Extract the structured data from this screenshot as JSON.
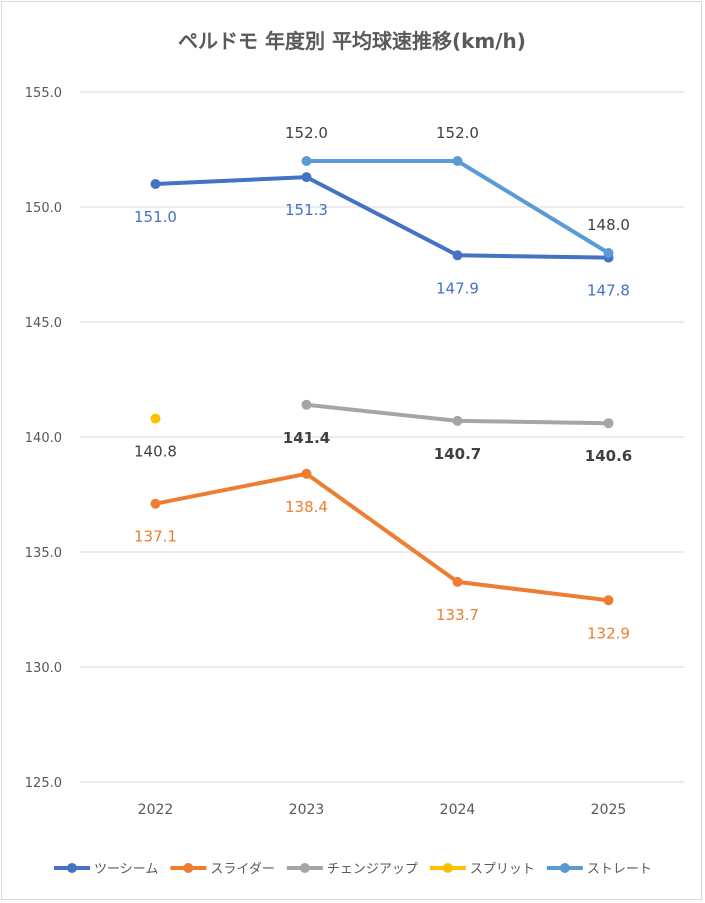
{
  "chart_data": {
    "type": "line",
    "title": "ペルドモ 年度別 平均球速推移(km/h)",
    "categories": [
      "2022",
      "2023",
      "2024",
      "2025"
    ],
    "ylim": [
      125,
      155
    ],
    "yticks": [
      "125.0",
      "130.0",
      "135.0",
      "140.0",
      "145.0",
      "150.0",
      "155.0"
    ],
    "series": [
      {
        "name": "ツーシーム",
        "color": "#4472c4",
        "values": [
          151.0,
          151.3,
          147.9,
          147.8
        ],
        "labels": [
          "151.0",
          "151.3",
          "147.9",
          "147.8"
        ],
        "label_pos": [
          "below",
          "below",
          "below",
          "below"
        ],
        "label_bold": false
      },
      {
        "name": "スライダー",
        "color": "#ed7d31",
        "values": [
          137.1,
          138.4,
          133.7,
          132.9
        ],
        "labels": [
          "137.1",
          "138.4",
          "133.7",
          "132.9"
        ],
        "label_pos": [
          "below",
          "below",
          "below",
          "below"
        ],
        "label_bold": false
      },
      {
        "name": "チェンジアップ",
        "color": "#a5a5a5",
        "values": [
          null,
          141.4,
          140.7,
          140.6
        ],
        "labels": [
          null,
          "141.4",
          "140.7",
          "140.6"
        ],
        "label_pos": [
          null,
          "below",
          "below",
          "below"
        ],
        "label_bold": true
      },
      {
        "name": "スプリット",
        "color": "#ffc000",
        "values": [
          140.8,
          null,
          null,
          null
        ],
        "labels": [
          "140.8",
          null,
          null,
          null
        ],
        "label_pos": [
          "below",
          null,
          null,
          null
        ],
        "label_bold": false
      },
      {
        "name": "ストレート",
        "color": "#5b9bd5",
        "values": [
          null,
          152.0,
          152.0,
          148.0
        ],
        "labels": [
          null,
          "152.0",
          "152.0",
          "148.0"
        ],
        "label_pos": [
          null,
          "above",
          "above",
          "above"
        ],
        "label_bold": false
      }
    ]
  }
}
